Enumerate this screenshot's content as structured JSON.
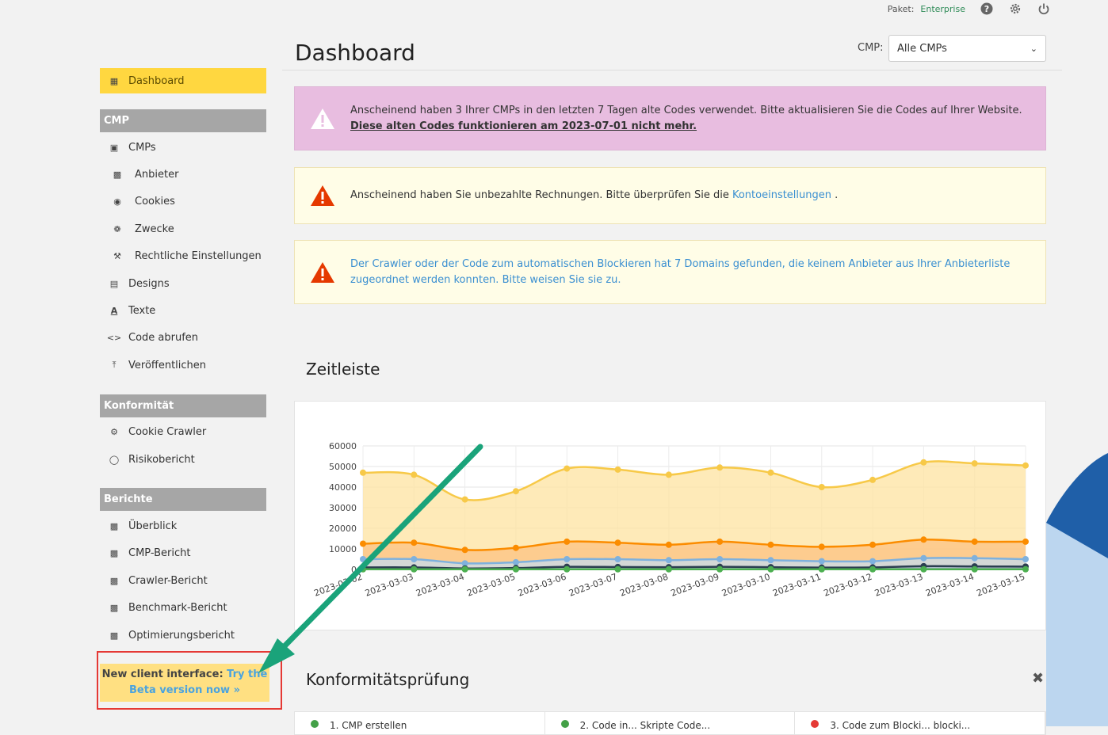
{
  "topbar": {
    "package_label": "Paket:",
    "package_value": "Enterprise"
  },
  "header": {
    "title": "Dashboard",
    "cmp_label": "CMP:",
    "cmp_selected": "Alle CMPs"
  },
  "sidebar": {
    "dashboard": "Dashboard",
    "section_cmp": "CMP",
    "cmps": "CMPs",
    "anbieter": "Anbieter",
    "cookies": "Cookies",
    "zwecke": "Zwecke",
    "rechtliche": "Rechtliche Einstellungen",
    "designs": "Designs",
    "texte": "Texte",
    "code": "Code abrufen",
    "veroeffentlichen": "Veröffentlichen",
    "section_konform": "Konformität",
    "crawler": "Cookie Crawler",
    "risiko": "Risikobericht",
    "section_berichte": "Berichte",
    "ueberblick": "Überblick",
    "cmp_bericht": "CMP-Bericht",
    "crawler_bericht": "Crawler-Bericht",
    "benchmark": "Benchmark-Bericht",
    "optimierung": "Optimierungsbericht",
    "beta_text": "New client interface:",
    "beta_link": "Try the Beta version now »"
  },
  "alerts": {
    "a1_text": "Anscheinend haben 3 Ihrer CMPs in den letzten 7 Tagen alte Codes verwendet. Bitte aktualisieren Sie die Codes auf Ihrer Website.",
    "a1_link": "Diese alten Codes funktionieren am 2023-07-01 nicht mehr.",
    "a2_text": "Anscheinend haben Sie unbezahlte Rechnungen. Bitte überprüfen Sie die",
    "a2_link": "Kontoeinstellungen",
    "a2_end": ".",
    "a3_link": "Der Crawler oder der Code zum automatischen Blockieren hat 7 Domains gefunden, die keinem Anbieter aus Ihrer Anbieterliste zugeordnet werden konnten. Bitte weisen Sie sie zu."
  },
  "sections": {
    "timeline": "Zeitleiste",
    "compliance": "Konformitätsprüfung"
  },
  "compliance_cols": [
    "1. CMP erstellen",
    "2. Code in... Skripte Code...",
    "3. Code zum Blocki... blocki..."
  ],
  "colors": {
    "accent": "#ffd740",
    "teal_arrow": "#1aa37a",
    "highlight_frame": "#e53935"
  },
  "chart_data": {
    "type": "area",
    "categories": [
      "2023-03-02",
      "2023-03-03",
      "2023-03-04",
      "2023-03-05",
      "2023-03-06",
      "2023-03-07",
      "2023-03-08",
      "2023-03-09",
      "2023-03-10",
      "2023-03-11",
      "2023-03-12",
      "2023-03-13",
      "2023-03-14",
      "2023-03-15"
    ],
    "ylim": [
      0,
      60000
    ],
    "yticks": [
      0,
      10000,
      20000,
      30000,
      40000,
      50000,
      60000
    ],
    "series": [
      {
        "color": "#f7c948",
        "fill": "#fde3a0",
        "values": [
          47000,
          46000,
          34000,
          38000,
          49000,
          48500,
          46000,
          49500,
          47000,
          40000,
          43500,
          52000,
          51500,
          50500
        ]
      },
      {
        "color": "#fb8c00",
        "fill": "#fcc281",
        "values": [
          12500,
          13000,
          9500,
          10500,
          13500,
          13000,
          12000,
          13500,
          12000,
          11000,
          12000,
          14500,
          13500,
          13500
        ]
      },
      {
        "color": "#7fb1dd",
        "fill": "#c6dcee",
        "values": [
          5000,
          5000,
          3000,
          3500,
          5000,
          5000,
          4500,
          5000,
          4500,
          4000,
          4000,
          5500,
          5500,
          5000
        ]
      },
      {
        "color": "#2c3e50",
        "fill": "#9db1c4",
        "values": [
          1000,
          1000,
          500,
          700,
          1300,
          1200,
          1100,
          1300,
          1100,
          900,
          1000,
          1600,
          1500,
          1400
        ]
      },
      {
        "color": "#4caf50",
        "fill": "#a5d6a7",
        "values": [
          100,
          100,
          100,
          100,
          100,
          100,
          100,
          100,
          100,
          100,
          100,
          100,
          100,
          100
        ]
      }
    ]
  }
}
